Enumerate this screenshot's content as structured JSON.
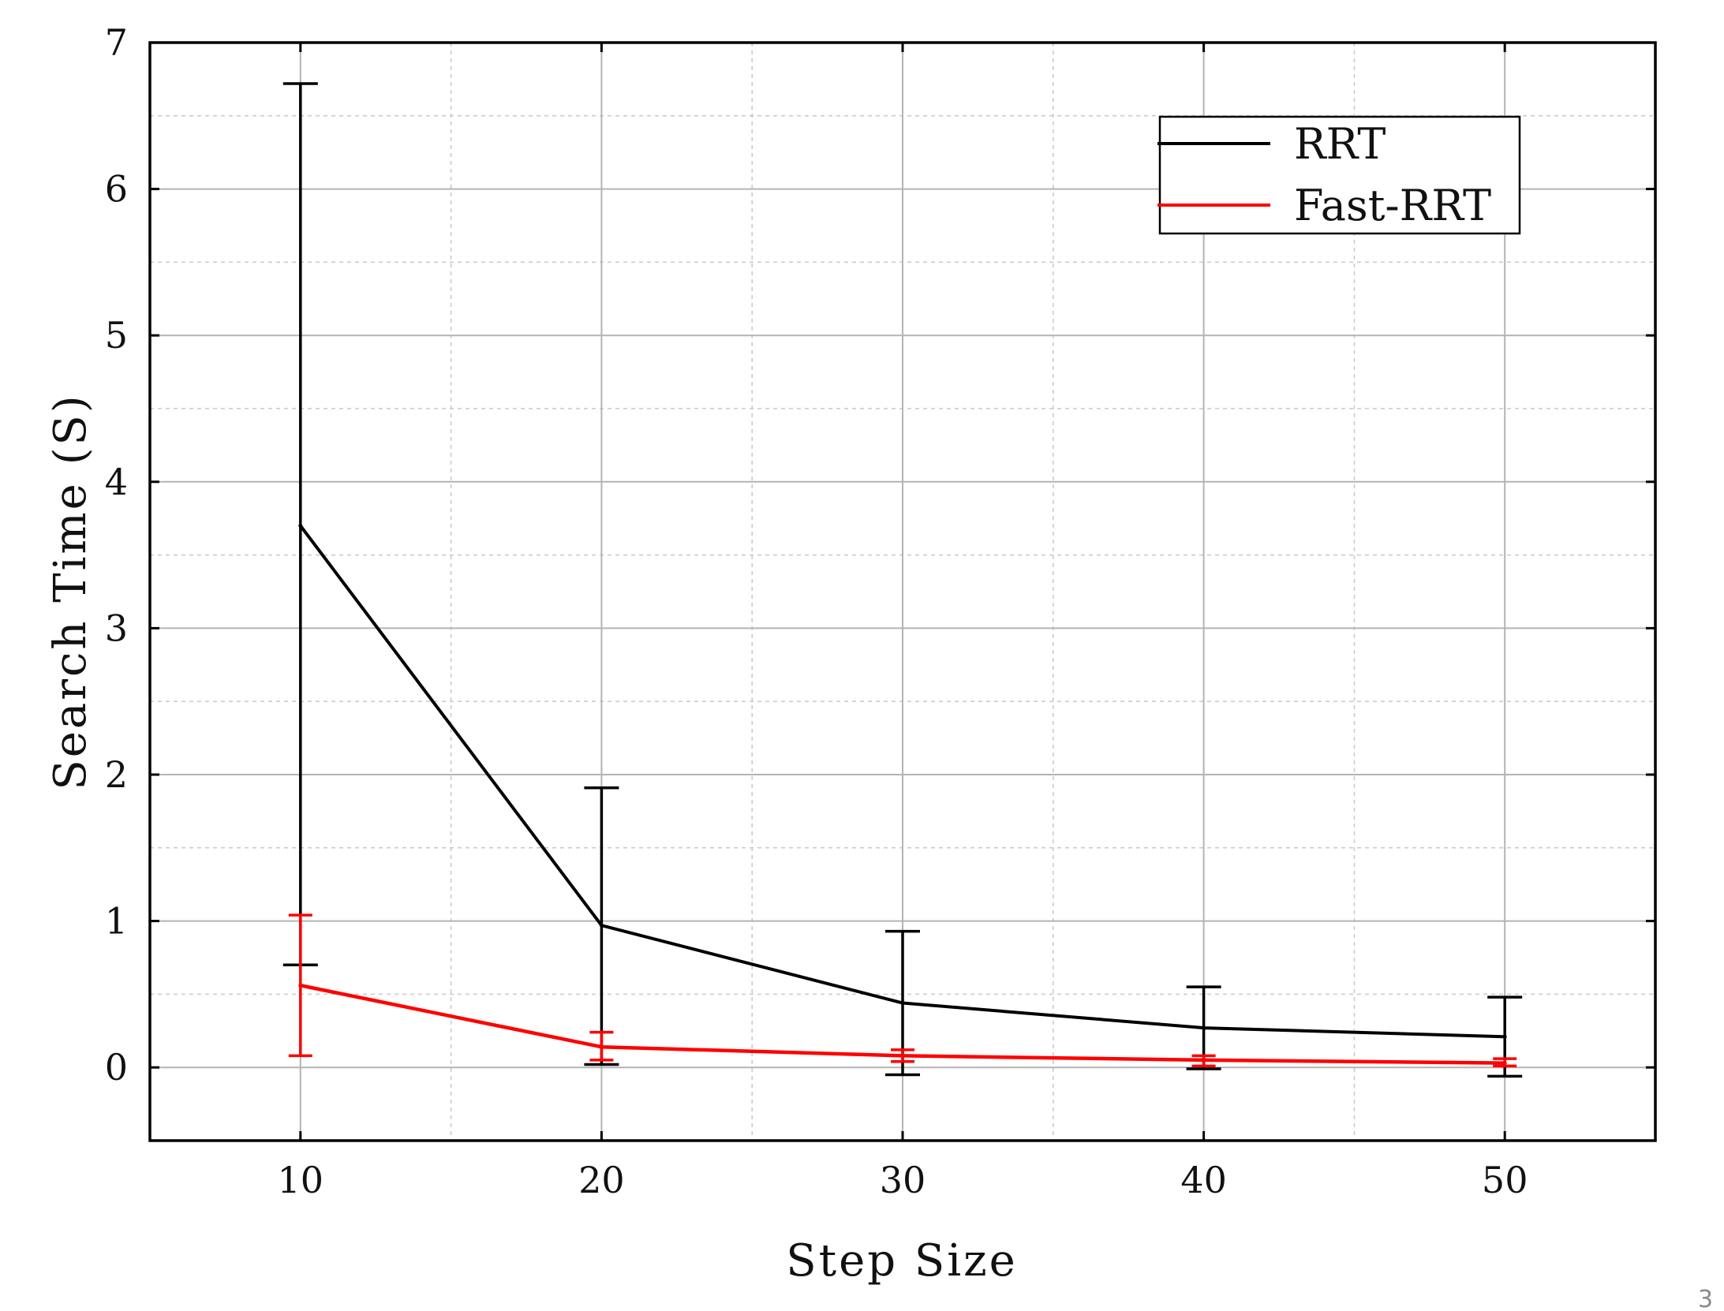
{
  "chart_data": {
    "type": "line",
    "xlabel": "Step Size",
    "ylabel": "Search Time (S)",
    "x": [
      10,
      20,
      30,
      40,
      50
    ],
    "xlim": [
      5,
      55
    ],
    "ylim": [
      -0.5,
      7
    ],
    "xticks": [
      10,
      20,
      30,
      40,
      50
    ],
    "yticks": [
      0,
      1,
      2,
      3,
      4,
      5,
      6,
      7
    ],
    "grid": true,
    "legend_position": "top-right",
    "series": [
      {
        "name": "RRT",
        "color": "#000000",
        "values": [
          3.7,
          0.97,
          0.44,
          0.27,
          0.21
        ],
        "err_lower": [
          0.7,
          0.02,
          -0.05,
          -0.01,
          -0.06
        ],
        "err_upper": [
          6.72,
          1.91,
          0.93,
          0.55,
          0.48
        ]
      },
      {
        "name": "Fast-RRT",
        "color": "#ff0000",
        "values": [
          0.56,
          0.14,
          0.08,
          0.05,
          0.03
        ],
        "err_lower": [
          0.08,
          0.05,
          0.04,
          0.01,
          0.01
        ],
        "err_upper": [
          1.04,
          0.24,
          0.12,
          0.08,
          0.06
        ]
      }
    ]
  },
  "page_number": "3"
}
